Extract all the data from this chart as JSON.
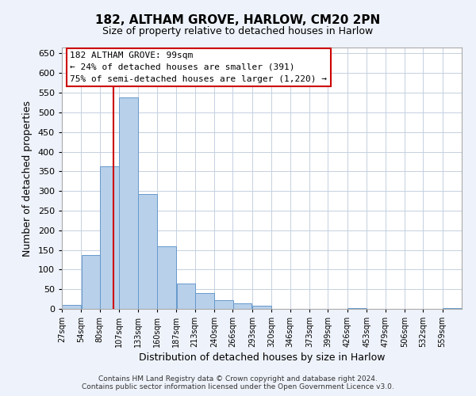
{
  "title": "182, ALTHAM GROVE, HARLOW, CM20 2PN",
  "subtitle": "Size of property relative to detached houses in Harlow",
  "xlabel": "Distribution of detached houses by size in Harlow",
  "ylabel": "Number of detached properties",
  "bar_color": "#b8d0ea",
  "bar_edge_color": "#6699cc",
  "bin_labels": [
    "27sqm",
    "54sqm",
    "80sqm",
    "107sqm",
    "133sqm",
    "160sqm",
    "187sqm",
    "213sqm",
    "240sqm",
    "266sqm",
    "293sqm",
    "320sqm",
    "346sqm",
    "373sqm",
    "399sqm",
    "426sqm",
    "453sqm",
    "479sqm",
    "506sqm",
    "532sqm",
    "559sqm"
  ],
  "bin_left_edges": [
    27,
    54,
    80,
    107,
    133,
    160,
    187,
    213,
    240,
    266,
    293,
    320,
    346,
    373,
    399,
    426,
    453,
    479,
    506,
    532,
    559
  ],
  "bin_width": 27,
  "bar_heights": [
    10,
    137,
    363,
    538,
    292,
    160,
    65,
    40,
    22,
    15,
    8,
    0,
    0,
    0,
    0,
    3,
    0,
    0,
    0,
    0,
    3
  ],
  "vline_x": 99,
  "vline_color": "#cc0000",
  "ylim": [
    0,
    665
  ],
  "yticks": [
    0,
    50,
    100,
    150,
    200,
    250,
    300,
    350,
    400,
    450,
    500,
    550,
    600,
    650
  ],
  "annotation_title": "182 ALTHAM GROVE: 99sqm",
  "annotation_line1": "← 24% of detached houses are smaller (391)",
  "annotation_line2": "75% of semi-detached houses are larger (1,220) →",
  "footer1": "Contains HM Land Registry data © Crown copyright and database right 2024.",
  "footer2": "Contains public sector information licensed under the Open Government Licence v3.0.",
  "background_color": "#eef2fa",
  "plot_background": "#ffffff",
  "grid_color": "#c5d0e0"
}
